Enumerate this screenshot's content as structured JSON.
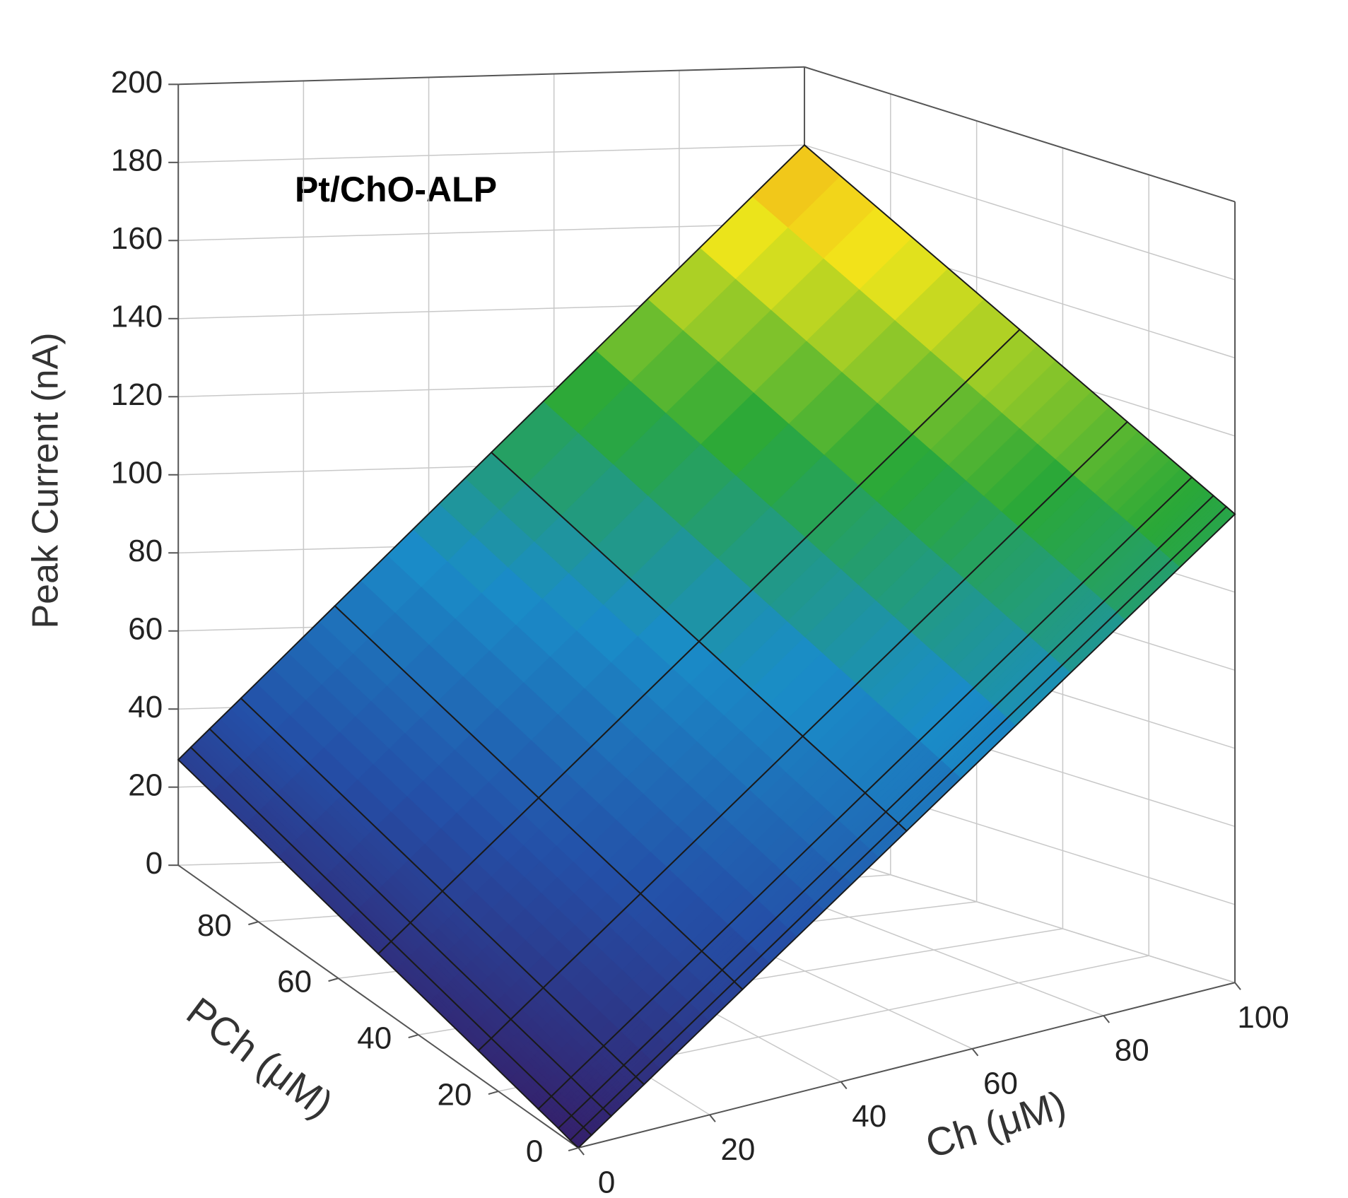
{
  "chart_data": {
    "type": "surface",
    "title": "Pt/ChO-ALP",
    "x_label": "Ch (μM)",
    "y_label": "PCh (μM)",
    "z_label": "Peak Current (nA)",
    "x": [
      0,
      2,
      5,
      10,
      25,
      50,
      100
    ],
    "y": [
      0,
      2,
      5,
      10,
      25,
      50,
      100
    ],
    "z": [
      [
        0,
        2.4,
        6,
        12,
        30,
        60,
        120
      ],
      [
        0.5,
        3,
        6.6,
        12.6,
        30.7,
        60.9,
        121.2
      ],
      [
        1.4,
        3.8,
        7.4,
        13.5,
        31.8,
        62.2,
        123
      ],
      [
        2.7,
        5.2,
        8.9,
        15,
        33.5,
        64.4,
        126
      ],
      [
        6.8,
        9.3,
        13.2,
        19.6,
        38.8,
        70.9,
        135
      ],
      [
        13.5,
        16.2,
        20.3,
        27.2,
        47.6,
        81.8,
        150
      ],
      [
        27,
        30.1,
        34.7,
        42.3,
        65.3,
        103.5,
        180
      ]
    ],
    "xlim": [
      0,
      100
    ],
    "ylim": [
      0,
      100
    ],
    "zlim": [
      0,
      200
    ],
    "xticks": [
      0,
      20,
      40,
      60,
      80,
      100
    ],
    "yticks": [
      0,
      20,
      40,
      60,
      80
    ],
    "zticks": [
      0,
      20,
      40,
      60,
      80,
      100,
      120,
      140,
      160,
      180,
      200
    ],
    "grid": true,
    "colormap": [
      "#35206a",
      "#2450a8",
      "#1a8cc8",
      "#2aa838",
      "#f2e61a",
      "#f07a1a"
    ]
  }
}
